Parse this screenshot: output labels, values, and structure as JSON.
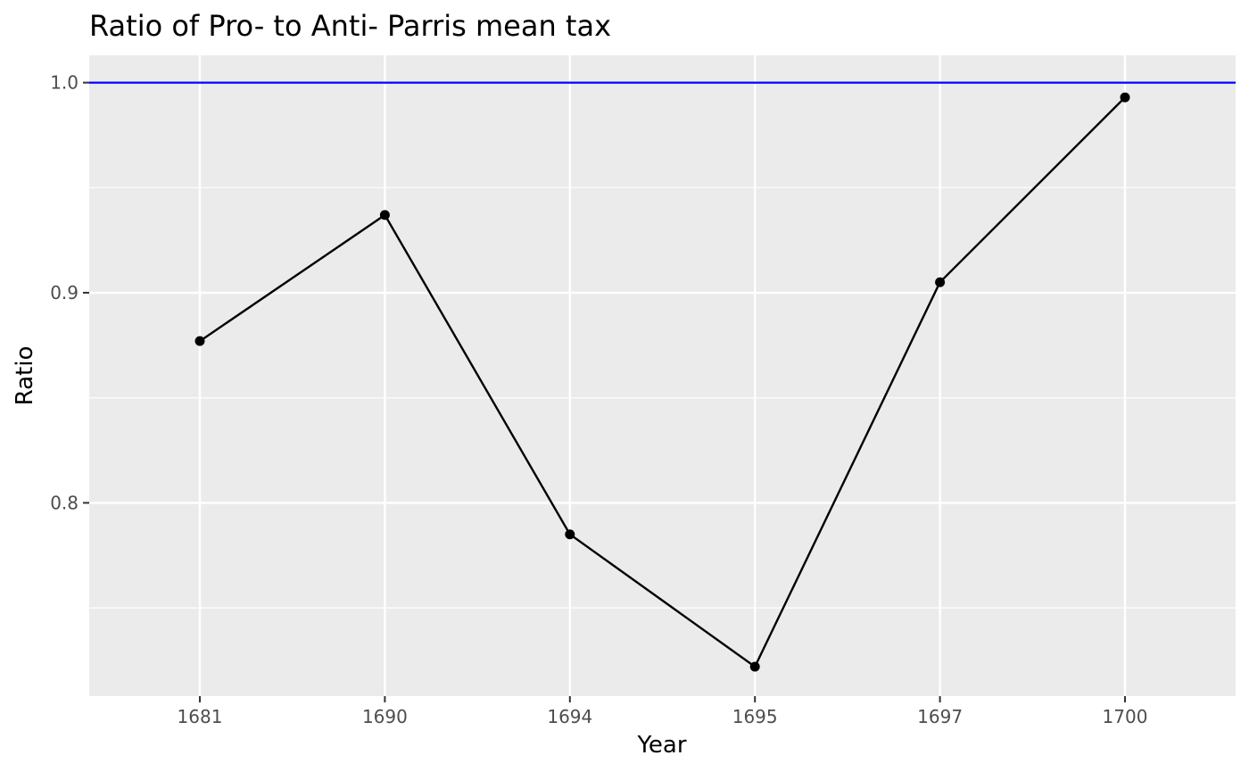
{
  "chart_data": {
    "type": "line",
    "title": "Ratio of Pro- to Anti- Parris mean tax",
    "xlabel": "Year",
    "ylabel": "Ratio",
    "categories": [
      "1681",
      "1690",
      "1694",
      "1695",
      "1697",
      "1700"
    ],
    "series": [
      {
        "values": [
          0.877,
          0.937,
          0.785,
          0.722,
          0.905,
          0.993
        ]
      }
    ],
    "reference_line": {
      "y": 1.0,
      "color": "#0000ff"
    },
    "y_ticks": [
      0.8,
      0.9,
      1.0
    ],
    "y_tick_labels": [
      "0.8",
      "0.9",
      "1.0"
    ],
    "ylim": [
      0.708,
      1.013
    ],
    "grid": true,
    "legend": "none",
    "colors": {
      "panel_background": "#ebebeb",
      "grid_line": "#ffffff",
      "series_line": "#000000",
      "point": "#000000",
      "tick_label": "#4d4d4d",
      "text": "#000000"
    }
  }
}
